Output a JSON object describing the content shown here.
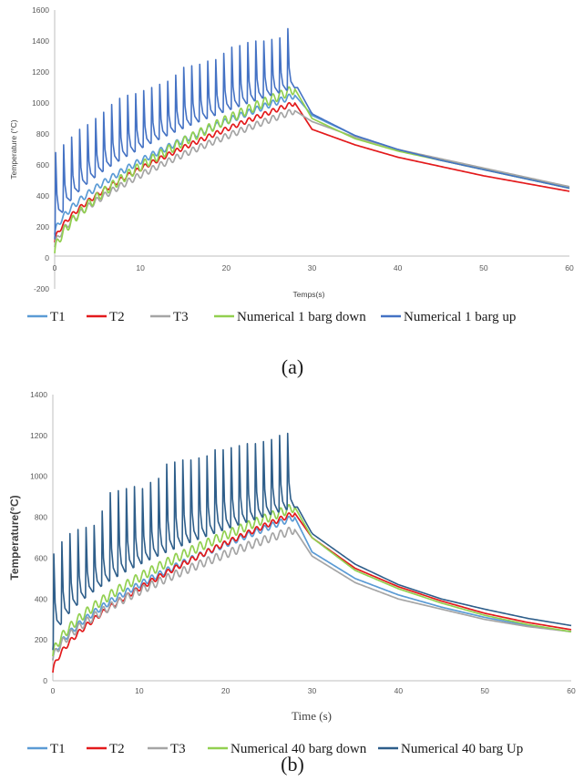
{
  "chart_data": [
    {
      "type": "line",
      "panel_caption": "(a)",
      "xlabel": "Temps(s)",
      "ylabel": "Temperature (°C)",
      "xlim": [
        0,
        60
      ],
      "ylim": [
        -200,
        1600
      ],
      "x_ticks": [
        "0",
        "10",
        "20",
        "30",
        "40",
        "50",
        "60"
      ],
      "y_ticks": [
        "-200",
        "0",
        "200",
        "400",
        "600",
        "800",
        "1000",
        "1200",
        "1400",
        "1600"
      ],
      "grid": false,
      "legend_position": "bottom",
      "pulse_end": 28,
      "series": [
        {
          "name": "T1",
          "color": "#5b9bd5",
          "start": 150,
          "peak": 1050,
          "amp": 40,
          "osc_lo": 0,
          "cool_x": [
            28,
            30,
            35,
            40,
            45,
            50,
            55,
            60
          ],
          "cool_y": [
            1050,
            920,
            790,
            700,
            630,
            570,
            510,
            450
          ]
        },
        {
          "name": "T2",
          "color": "#e31a1c",
          "start": 100,
          "peak": 1000,
          "amp": 30,
          "osc_lo": 0,
          "cool_x": [
            28,
            30,
            35,
            40,
            45,
            50,
            55,
            60
          ],
          "cool_y": [
            1000,
            830,
            730,
            650,
            590,
            530,
            480,
            430
          ]
        },
        {
          "name": "T3",
          "color": "#a5a5a5",
          "start": 70,
          "peak": 950,
          "amp": 40,
          "osc_lo": 0,
          "cool_x": [
            28,
            30,
            35,
            40,
            45,
            50,
            55,
            60
          ],
          "cool_y": [
            950,
            880,
            780,
            700,
            640,
            580,
            520,
            460
          ]
        },
        {
          "name": "Numerical 1 barg down",
          "color": "#92d050",
          "start": 30,
          "peak": 1090,
          "amp": 60,
          "osc_lo": 0,
          "cool_x": [
            28,
            30,
            35,
            40,
            45,
            50,
            55,
            60
          ],
          "cool_y": [
            1090,
            900,
            770,
            690,
            630,
            570,
            510,
            450
          ]
        },
        {
          "name": "Numerical 1 barg up",
          "color": "#4472c4",
          "start": 120,
          "peak": 1100,
          "amp": 40,
          "osc_lo": 1,
          "cool_x": [
            28.3,
            30,
            35,
            40,
            45,
            50,
            55,
            60
          ],
          "cool_y": [
            1100,
            930,
            790,
            700,
            630,
            570,
            510,
            450
          ],
          "spike_peaks": [
            680,
            730,
            780,
            830,
            860,
            900,
            940,
            990,
            1030,
            1050,
            1060,
            1080,
            1100,
            1120,
            1140,
            1180,
            1230,
            1240,
            1250,
            1270,
            1280,
            1320,
            1360,
            1370,
            1390,
            1400,
            1400,
            1410,
            1420,
            1480
          ]
        }
      ]
    },
    {
      "type": "line",
      "panel_caption": "(b)",
      "xlabel": "Time (s)",
      "ylabel": "Temperature(°C)",
      "xlim": [
        0,
        60
      ],
      "ylim": [
        0,
        1400
      ],
      "x_ticks": [
        "0",
        "10",
        "20",
        "30",
        "40",
        "50",
        "60"
      ],
      "y_ticks": [
        "0",
        "200",
        "400",
        "600",
        "800",
        "1000",
        "1200",
        "1400"
      ],
      "grid": false,
      "legend_position": "bottom",
      "pulse_end": 28,
      "series": [
        {
          "name": "T1",
          "color": "#5b9bd5",
          "start": 100,
          "peak": 800,
          "amp": 30,
          "osc_lo": 0,
          "cool_x": [
            28,
            30,
            35,
            40,
            45,
            50,
            55,
            60
          ],
          "cool_y": [
            800,
            630,
            500,
            420,
            360,
            310,
            270,
            240
          ]
        },
        {
          "name": "T2",
          "color": "#e31a1c",
          "start": 40,
          "peak": 820,
          "amp": 25,
          "osc_lo": 0,
          "cool_x": [
            28,
            30,
            35,
            40,
            45,
            50,
            55,
            60
          ],
          "cool_y": [
            820,
            700,
            550,
            460,
            390,
            330,
            285,
            250
          ]
        },
        {
          "name": "T3",
          "color": "#a5a5a5",
          "start": 100,
          "peak": 740,
          "amp": 40,
          "osc_lo": 0,
          "cool_x": [
            28,
            30,
            35,
            40,
            45,
            50,
            55,
            60
          ],
          "cool_y": [
            740,
            610,
            480,
            400,
            350,
            300,
            265,
            240
          ]
        },
        {
          "name": "Numerical  40 barg down",
          "color": "#92d050",
          "start": 120,
          "peak": 850,
          "amp": 45,
          "osc_lo": 0,
          "cool_x": [
            28,
            30,
            35,
            40,
            45,
            50,
            55,
            60
          ],
          "cool_y": [
            850,
            700,
            540,
            450,
            380,
            320,
            275,
            240
          ]
        },
        {
          "name": "Numerical  40 barg Up",
          "color": "#2e5e8a",
          "start": 150,
          "peak": 850,
          "amp": 35,
          "osc_lo": 1,
          "cool_x": [
            28.3,
            30,
            35,
            40,
            45,
            50,
            55,
            60
          ],
          "cool_y": [
            850,
            720,
            570,
            470,
            400,
            350,
            305,
            270
          ],
          "spike_peaks": [
            620,
            680,
            720,
            740,
            750,
            760,
            830,
            920,
            930,
            940,
            950,
            940,
            970,
            990,
            1060,
            1070,
            1080,
            1080,
            1090,
            1100,
            1130,
            1130,
            1140,
            1150,
            1160,
            1160,
            1170,
            1180,
            1200,
            1210
          ]
        }
      ]
    }
  ]
}
